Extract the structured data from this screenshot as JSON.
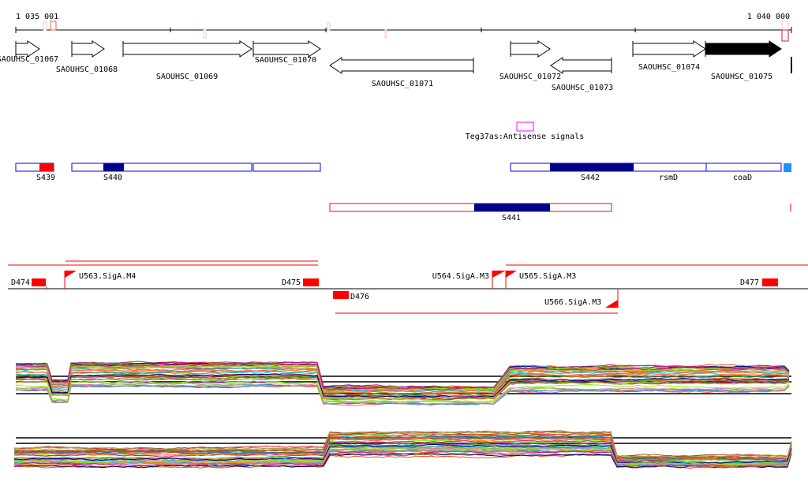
{
  "ruler": {
    "start_label": "1 035 001",
    "end_label": "1 040 000"
  },
  "genes": [
    {
      "label": "SAOUHSC_01067",
      "strand": "+",
      "filled": false
    },
    {
      "label": "SAOUHSC_01068",
      "strand": "+",
      "filled": false
    },
    {
      "label": "SAOUHSC_01069",
      "strand": "+",
      "filled": false
    },
    {
      "label": "SAOUHSC_01070",
      "strand": "+",
      "filled": false
    },
    {
      "label": "SAOUHSC_01071",
      "strand": "-",
      "filled": false
    },
    {
      "label": "SAOUHSC_01072",
      "strand": "+",
      "filled": false
    },
    {
      "label": "SAOUHSC_01073",
      "strand": "-",
      "filled": false
    },
    {
      "label": "SAOUHSC_01074",
      "strand": "+",
      "filled": false
    },
    {
      "label": "SAOUHSC_01075",
      "strand": "+",
      "filled": true
    }
  ],
  "antisense": {
    "label": "Teg37as:Antisense signals",
    "color": "#ff00ff"
  },
  "segments": {
    "forward": [
      {
        "label": "S439",
        "fill": "#ff0000"
      },
      {
        "label": "S440",
        "fill": "#00008b"
      },
      {
        "label": "S442",
        "fill": "#00008b"
      },
      {
        "label": "rsmD"
      },
      {
        "label": "coaD"
      }
    ],
    "reverse": [
      {
        "label": "S441",
        "fill": "#00008b"
      }
    ],
    "outline_forward": "#0000ff",
    "outline_reverse": "#ff0000",
    "edge_color": "#1e90ff"
  },
  "promoters": {
    "labels": [
      "D474",
      "U563.SigA.M4",
      "D475",
      "D476",
      "U564.SigA.M3",
      "U565.SigA.M3",
      "U566.SigA.M3",
      "D477"
    ],
    "color": "#ff0000"
  },
  "expression": {
    "colors": [
      "#e6550d",
      "#8c6d31",
      "#7f7f7f",
      "#2ca02c",
      "#9467bd",
      "#d62728",
      "#bcbd22",
      "#17becf",
      "#ff7f0e",
      "#8c564b",
      "#e377c2",
      "#1f77b4",
      "#7fff00",
      "#c71585",
      "#6baed6",
      "#b5a642",
      "#a0522d",
      "#000080",
      "#ff6347",
      "#9acd32"
    ]
  }
}
